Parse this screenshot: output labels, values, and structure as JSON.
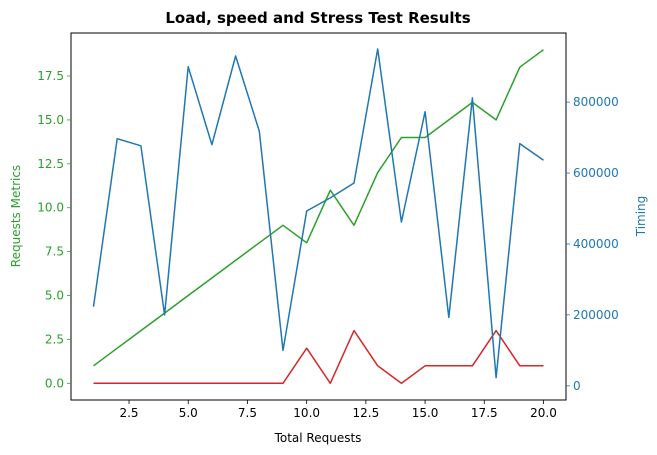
{
  "chart_data": {
    "type": "line",
    "title": "Load, speed and Stress Test Results",
    "xlabel": "Total Requests",
    "ylabel_left": "Requests Metrics",
    "ylabel_right": "Timing",
    "x": [
      1,
      2,
      3,
      4,
      5,
      6,
      7,
      8,
      9,
      10,
      11,
      12,
      13,
      14,
      15,
      16,
      17,
      18,
      19,
      20
    ],
    "xlim": [
      0.05,
      20.95
    ],
    "ylim_left": [
      -0.95,
      19.95
    ],
    "ylim_right": [
      -40000,
      995000
    ],
    "x_ticks": [
      2.5,
      5.0,
      7.5,
      10.0,
      12.5,
      15.0,
      17.5,
      20.0
    ],
    "x_tick_labels": [
      "2.5",
      "5.0",
      "7.5",
      "10.0",
      "12.5",
      "15.0",
      "17.5",
      "20.0"
    ],
    "y_left_ticks": [
      0.0,
      2.5,
      5.0,
      7.5,
      10.0,
      12.5,
      15.0,
      17.5
    ],
    "y_left_tick_labels": [
      "0.0",
      "2.5",
      "5.0",
      "7.5",
      "10.0",
      "12.5",
      "15.0",
      "17.5"
    ],
    "y_right_ticks": [
      0,
      200000,
      400000,
      600000,
      800000
    ],
    "y_right_tick_labels": [
      "0",
      "200000",
      "400000",
      "600000",
      "800000"
    ],
    "grid": false,
    "series": [
      {
        "axis": "left",
        "color": "#2ca02c",
        "values": [
          1,
          2,
          3,
          4,
          5,
          6,
          7,
          8,
          9,
          8,
          11,
          9,
          12,
          14,
          14,
          15,
          16,
          15,
          18,
          19
        ]
      },
      {
        "axis": "left",
        "color": "#d62728",
        "values": [
          0,
          0,
          0,
          0,
          0,
          0,
          0,
          0,
          0,
          2,
          0,
          3,
          1,
          0,
          1,
          1,
          1,
          3,
          1,
          1
        ]
      },
      {
        "axis": "right",
        "color": "#1f77b4",
        "values": [
          223000,
          697000,
          677000,
          200000,
          900000,
          680000,
          930000,
          718000,
          100000,
          493000,
          530000,
          572000,
          950000,
          462000,
          773000,
          193000,
          812000,
          23000,
          683000,
          636000
        ]
      }
    ],
    "colors": {
      "left_axis": "#2ca02c",
      "right_axis": "#1f77b4",
      "bottom_axis": "#000000"
    }
  }
}
